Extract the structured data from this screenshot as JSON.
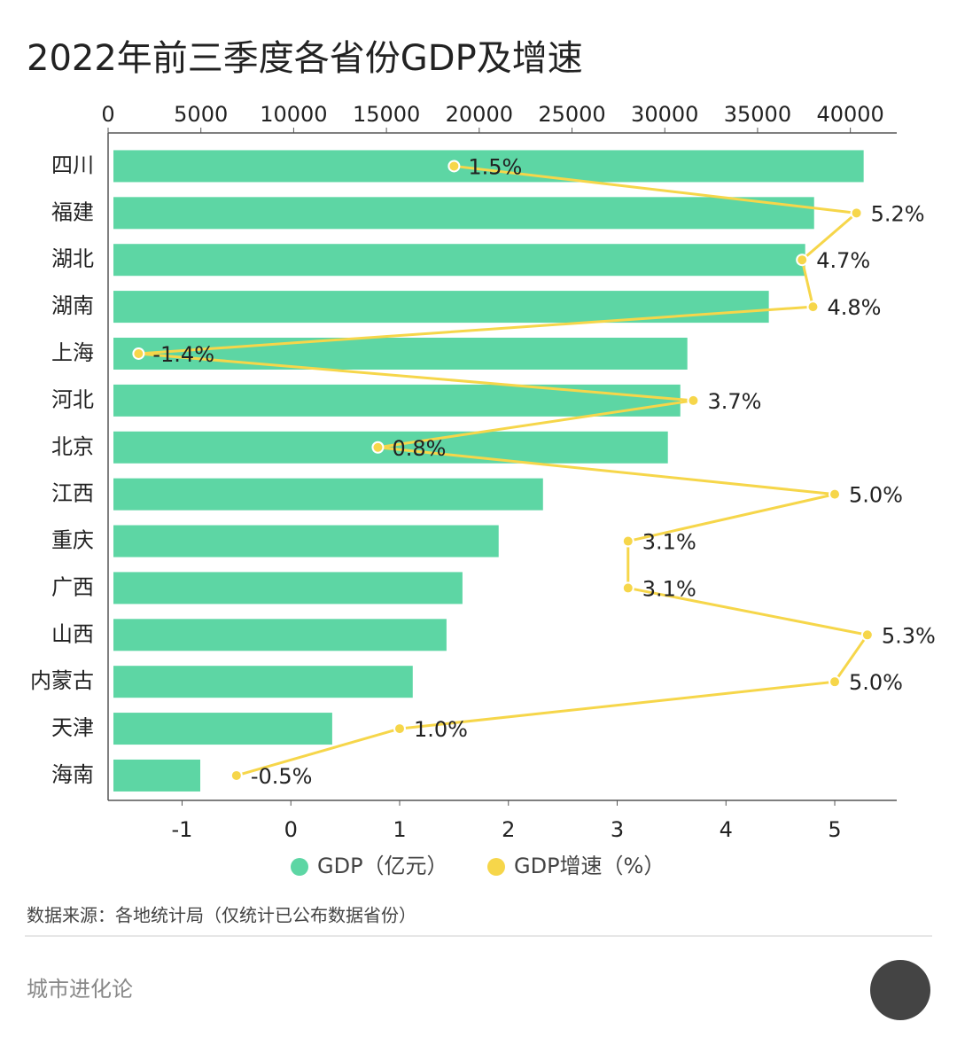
{
  "chart_data": {
    "type": "bar",
    "orientation": "horizontal",
    "title": "2022年前三季度各省份GDP及增速",
    "categories": [
      "四川",
      "福建",
      "湖北",
      "湖南",
      "上海",
      "河北",
      "北京",
      "江西",
      "重庆",
      "广西",
      "山西",
      "内蒙古",
      "天津",
      "海南"
    ],
    "series": [
      {
        "name": "GDP（亿元）",
        "color": "#5dd6a4",
        "values": [
          40430,
          37760,
          37280,
          35320,
          30930,
          30550,
          29880,
          23150,
          20760,
          18810,
          17950,
          16130,
          11790,
          4680
        ]
      },
      {
        "name": "GDP增速（%）",
        "color": "#f6d64a",
        "axis": "x2",
        "type": "line",
        "values": [
          1.5,
          5.2,
          4.7,
          4.8,
          -1.4,
          3.7,
          0.8,
          5.0,
          3.1,
          3.1,
          5.3,
          5.0,
          1.0,
          -0.5
        ],
        "value_labels": [
          "1.5%",
          "5.2%",
          "4.7%",
          "4.8%",
          "-1.4%",
          "3.7%",
          "0.8%",
          "5.0%",
          "3.1%",
          "3.1%",
          "5.3%",
          "5.0%",
          "1.0%",
          "-0.5%"
        ]
      }
    ],
    "xlim": [
      0,
      42500
    ],
    "xticks": [
      0,
      5000,
      10000,
      15000,
      20000,
      25000,
      30000,
      35000,
      40000
    ],
    "x2lim": [
      -1.68,
      5.57
    ],
    "x2ticks": [
      -1,
      0,
      1,
      2,
      3,
      4,
      5
    ],
    "legend": "bottom",
    "source": "数据来源：各地统计局（仅统计已公布数据省份）",
    "footer": "城市进化论"
  }
}
